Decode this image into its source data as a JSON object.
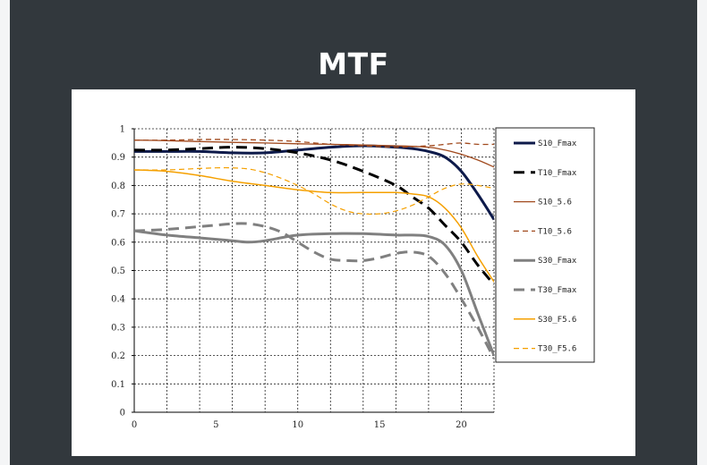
{
  "title": "MTF",
  "colors": {
    "background_outer": "#f4f5f6",
    "frame": "#32383d",
    "card": "#ffffff"
  },
  "chart_data": {
    "type": "line",
    "xlim": [
      0,
      22
    ],
    "ylim": [
      0,
      1
    ],
    "x_ticks": [
      "0",
      "5",
      "10",
      "15",
      "20"
    ],
    "y_ticks": [
      "0",
      "0.1",
      "0.2",
      "0.3",
      "0.4",
      "0.5",
      "0.6",
      "0.7",
      "0.8",
      "0.9",
      "1"
    ],
    "grid": true,
    "legend_position": "right",
    "series": [
      {
        "name": "S10_Fmax",
        "color": "#0d1a4a",
        "width": 3,
        "dash": "",
        "x": [
          0,
          2,
          4,
          6,
          8,
          10,
          12,
          14,
          16,
          17,
          18,
          19,
          20,
          21,
          22
        ],
        "y": [
          0.92,
          0.92,
          0.92,
          0.915,
          0.915,
          0.925,
          0.935,
          0.94,
          0.935,
          0.93,
          0.92,
          0.9,
          0.85,
          0.77,
          0.68
        ]
      },
      {
        "name": "T10_Fmax",
        "color": "#000000",
        "width": 3,
        "dash": "12 7",
        "x": [
          0,
          2,
          4,
          6,
          8,
          10,
          12,
          14,
          16,
          17,
          18,
          19,
          20,
          21,
          22
        ],
        "y": [
          0.925,
          0.925,
          0.93,
          0.935,
          0.93,
          0.915,
          0.89,
          0.85,
          0.8,
          0.76,
          0.72,
          0.66,
          0.6,
          0.52,
          0.45
        ]
      },
      {
        "name": "S10_5.6",
        "color": "#a14a1e",
        "width": 1.3,
        "dash": "",
        "x": [
          0,
          2,
          4,
          6,
          8,
          10,
          12,
          14,
          16,
          18,
          19,
          20,
          21,
          22
        ],
        "y": [
          0.96,
          0.958,
          0.955,
          0.952,
          0.95,
          0.947,
          0.945,
          0.943,
          0.94,
          0.935,
          0.925,
          0.91,
          0.89,
          0.865
        ]
      },
      {
        "name": "T10_5.6",
        "color": "#a14a1e",
        "width": 1.3,
        "dash": "6 4",
        "x": [
          0,
          2,
          4,
          6,
          8,
          10,
          12,
          14,
          16,
          18,
          19,
          20,
          21,
          22
        ],
        "y": [
          0.96,
          0.96,
          0.962,
          0.962,
          0.96,
          0.955,
          0.945,
          0.94,
          0.935,
          0.94,
          0.945,
          0.95,
          0.945,
          0.945
        ]
      },
      {
        "name": "S30_Fmax",
        "color": "#808080",
        "width": 3,
        "dash": "",
        "x": [
          0,
          2,
          4,
          6,
          7,
          8,
          10,
          12,
          14,
          16,
          17,
          18,
          19,
          20,
          21,
          22
        ],
        "y": [
          0.64,
          0.625,
          0.615,
          0.605,
          0.6,
          0.605,
          0.625,
          0.63,
          0.63,
          0.625,
          0.625,
          0.62,
          0.59,
          0.5,
          0.35,
          0.2
        ]
      },
      {
        "name": "T30_Fmax",
        "color": "#808080",
        "width": 3,
        "dash": "12 7",
        "x": [
          0,
          2,
          4,
          5,
          6,
          7,
          8,
          9,
          10,
          11,
          12,
          13,
          14,
          15,
          16,
          17,
          18,
          19,
          20,
          21,
          22
        ],
        "y": [
          0.64,
          0.645,
          0.655,
          0.66,
          0.665,
          0.665,
          0.655,
          0.635,
          0.6,
          0.565,
          0.54,
          0.535,
          0.535,
          0.545,
          0.56,
          0.565,
          0.55,
          0.49,
          0.4,
          0.3,
          0.19
        ]
      },
      {
        "name": "S30_F5.6",
        "color": "#f5a000",
        "width": 1.5,
        "dash": "",
        "x": [
          0,
          2,
          4,
          6,
          8,
          10,
          12,
          14,
          16,
          17,
          18,
          19,
          20,
          21,
          22
        ],
        "y": [
          0.855,
          0.85,
          0.835,
          0.815,
          0.8,
          0.785,
          0.775,
          0.775,
          0.775,
          0.77,
          0.76,
          0.72,
          0.65,
          0.55,
          0.46
        ]
      },
      {
        "name": "T30_F5.6",
        "color": "#f5a000",
        "width": 1.2,
        "dash": "6 4",
        "x": [
          0,
          2,
          4,
          5,
          6,
          7,
          8,
          9,
          10,
          11,
          12,
          13,
          14,
          15,
          16,
          17,
          18,
          19,
          20,
          21,
          22
        ],
        "y": [
          0.855,
          0.855,
          0.86,
          0.862,
          0.862,
          0.858,
          0.845,
          0.825,
          0.8,
          0.77,
          0.735,
          0.71,
          0.7,
          0.7,
          0.71,
          0.73,
          0.76,
          0.79,
          0.805,
          0.8,
          0.79
        ]
      }
    ]
  }
}
